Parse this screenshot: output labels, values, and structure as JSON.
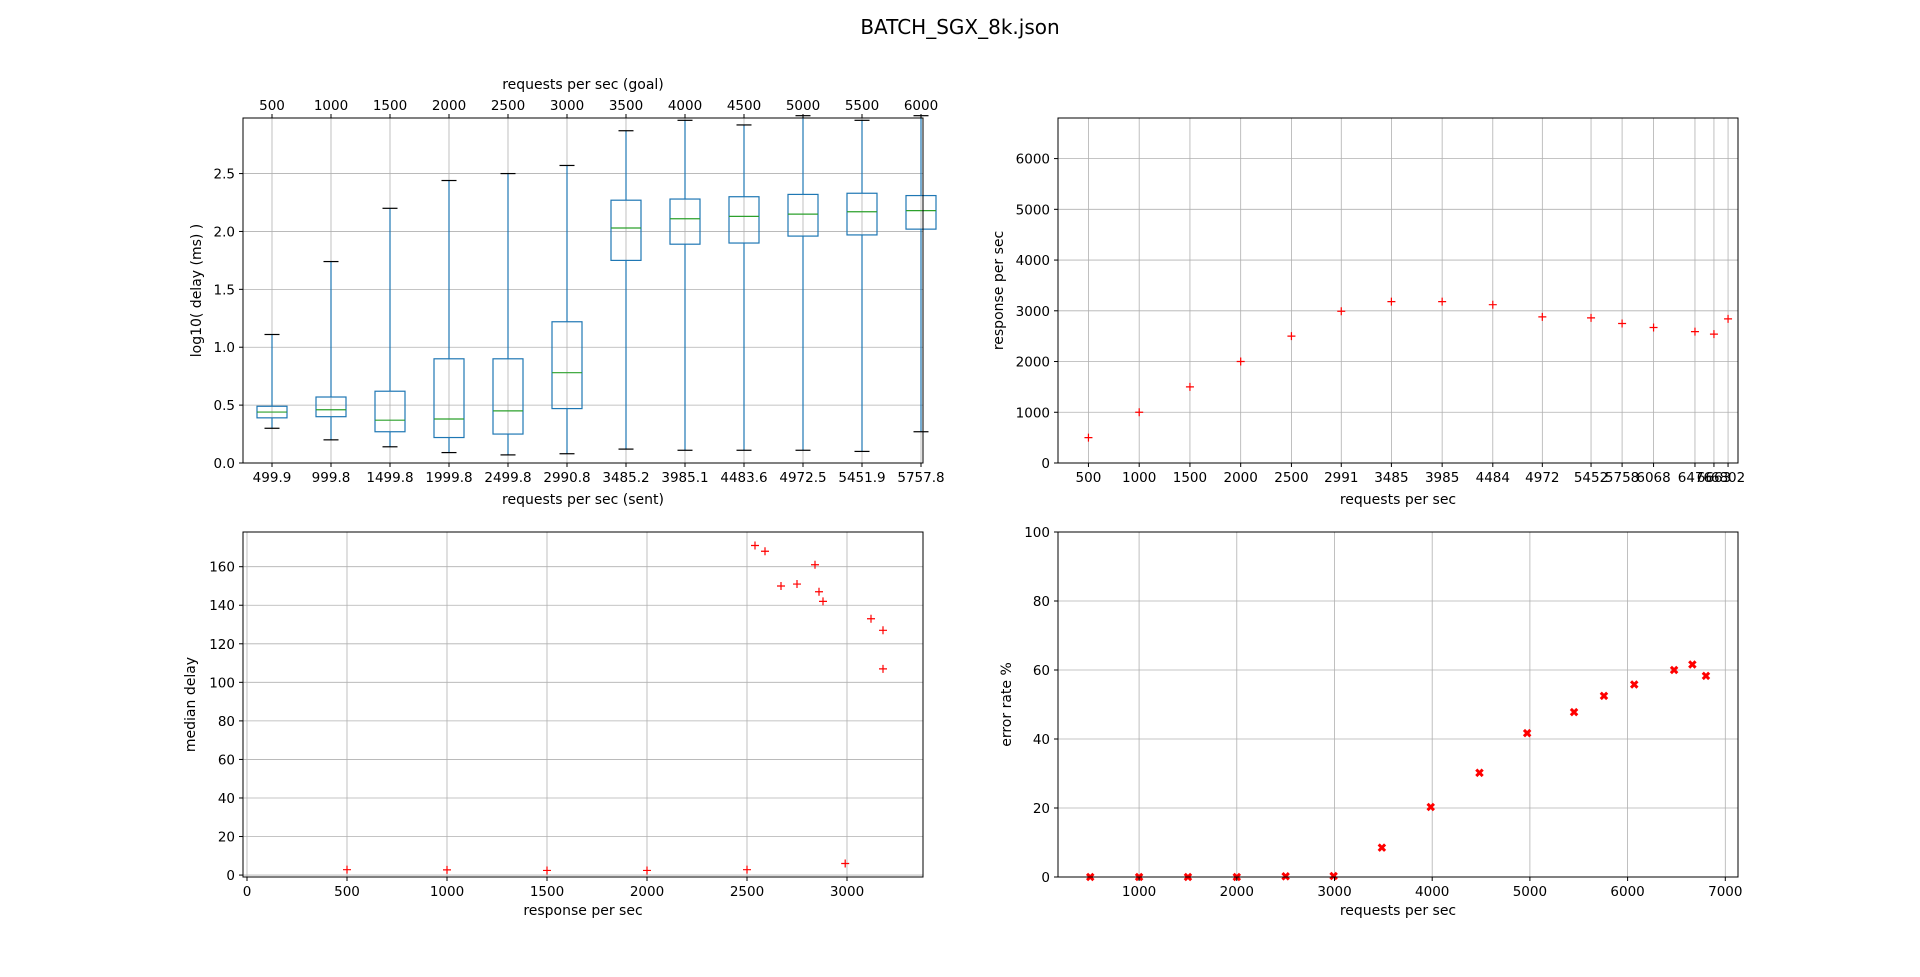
{
  "title": "BATCH_SGX_8k.json",
  "colors": {
    "box": "#1f77b4",
    "median": "#2ca02c",
    "marker": "#ff0000",
    "grid": "#b0b0b0"
  },
  "chart_data": [
    {
      "type": "box",
      "xlabel": "requests per sec (sent)",
      "ylabel": "log10( delay (ms) )",
      "top_xlabel": "requests per sec (goal)",
      "categories": [
        "499.9",
        "999.8",
        "1499.8",
        "1999.8",
        "2499.8",
        "2990.8",
        "3485.2",
        "3985.1",
        "4483.6",
        "4972.5",
        "5451.9",
        "5757.8"
      ],
      "top_categories": [
        "500",
        "1000",
        "1500",
        "2000",
        "2500",
        "3000",
        "3500",
        "4000",
        "4500",
        "5000",
        "5500",
        "6000"
      ],
      "yticks": [
        "0.0",
        "0.5",
        "1.0",
        "1.5",
        "2.0",
        "2.5"
      ],
      "ylim": [
        0,
        2.98
      ],
      "grid": true,
      "boxes": [
        {
          "whislo": 0.3,
          "q1": 0.39,
          "med": 0.44,
          "q3": 0.49,
          "whishi": 1.11
        },
        {
          "whislo": 0.2,
          "q1": 0.4,
          "med": 0.46,
          "q3": 0.57,
          "whishi": 1.74
        },
        {
          "whislo": 0.14,
          "q1": 0.27,
          "med": 0.37,
          "q3": 0.62,
          "whishi": 2.2
        },
        {
          "whislo": 0.09,
          "q1": 0.22,
          "med": 0.38,
          "q3": 0.9,
          "whishi": 2.44
        },
        {
          "whislo": 0.07,
          "q1": 0.25,
          "med": 0.45,
          "q3": 0.9,
          "whishi": 2.5
        },
        {
          "whislo": 0.08,
          "q1": 0.47,
          "med": 0.78,
          "q3": 1.22,
          "whishi": 2.57
        },
        {
          "whislo": 0.12,
          "q1": 1.75,
          "med": 2.03,
          "q3": 2.27,
          "whishi": 2.87
        },
        {
          "whislo": 0.11,
          "q1": 1.89,
          "med": 2.11,
          "q3": 2.28,
          "whishi": 2.96
        },
        {
          "whislo": 0.11,
          "q1": 1.9,
          "med": 2.13,
          "q3": 2.3,
          "whishi": 2.92
        },
        {
          "whislo": 0.11,
          "q1": 1.96,
          "med": 2.15,
          "q3": 2.32,
          "whishi": 3.0
        },
        {
          "whislo": 0.1,
          "q1": 1.97,
          "med": 2.17,
          "q3": 2.33,
          "whishi": 2.96
        },
        {
          "whislo": 0.27,
          "q1": 2.02,
          "med": 2.18,
          "q3": 2.31,
          "whishi": 3.0
        }
      ]
    },
    {
      "type": "scatter",
      "xlabel": "requests per sec",
      "ylabel": "response per sec",
      "xtick_labels": [
        "500",
        "1000",
        "1500",
        "2000",
        "2500",
        "2991",
        "3485",
        "3985",
        "4484",
        "4972",
        "5452",
        "5758",
        "6068",
        "6476",
        "6663",
        "6802"
      ],
      "x": [
        500,
        1000,
        1500,
        2000,
        2500,
        2991,
        3485,
        3985,
        4484,
        4972,
        5452,
        5758,
        6068,
        6476,
        6663,
        6802
      ],
      "y": [
        500,
        1000,
        1500,
        2000,
        2500,
        2991,
        3180,
        3180,
        3120,
        2880,
        2860,
        2750,
        2670,
        2590,
        2540,
        2840
      ],
      "xlim": [
        200,
        6900
      ],
      "ylim": [
        0,
        6800
      ],
      "yticks": [
        "0",
        "1000",
        "2000",
        "3000",
        "4000",
        "5000",
        "6000"
      ],
      "marker": "+",
      "grid": true
    },
    {
      "type": "scatter",
      "xlabel": "response per sec",
      "ylabel": "median delay",
      "x": [
        500,
        1000,
        1500,
        2000,
        2500,
        2991,
        3180,
        3180,
        3120,
        2880,
        2860,
        2750,
        2670,
        2590,
        2540,
        2840
      ],
      "y": [
        2.8,
        2.7,
        2.4,
        2.4,
        2.8,
        6.0,
        107,
        127,
        133,
        142,
        147,
        151,
        150,
        168,
        171,
        161
      ],
      "xlim": [
        -20,
        3380
      ],
      "ylim": [
        -1,
        178
      ],
      "xticks": [
        "0",
        "500",
        "1000",
        "1500",
        "2000",
        "2500",
        "3000"
      ],
      "yticks": [
        "0",
        "20",
        "40",
        "60",
        "80",
        "100",
        "120",
        "140",
        "160"
      ],
      "marker": "+",
      "grid": true
    },
    {
      "type": "scatter",
      "xlabel": "requests per sec",
      "ylabel": "error rate %",
      "x": [
        500,
        1000,
        1500,
        2000,
        2500,
        2991,
        3485,
        3985,
        4484,
        4972,
        5452,
        5758,
        6068,
        6476,
        6663,
        6802
      ],
      "y": [
        0,
        0,
        0,
        0,
        0.2,
        0.3,
        8.5,
        20.3,
        30.2,
        41.7,
        47.8,
        52.5,
        55.8,
        60.0,
        61.6,
        58.3
      ],
      "xlim": [
        170,
        7130
      ],
      "ylim": [
        0,
        100
      ],
      "xticks": [
        "1000",
        "2000",
        "3000",
        "4000",
        "5000",
        "6000",
        "7000"
      ],
      "yticks": [
        "0",
        "20",
        "40",
        "60",
        "80",
        "100"
      ],
      "marker": "X",
      "grid": true
    }
  ]
}
